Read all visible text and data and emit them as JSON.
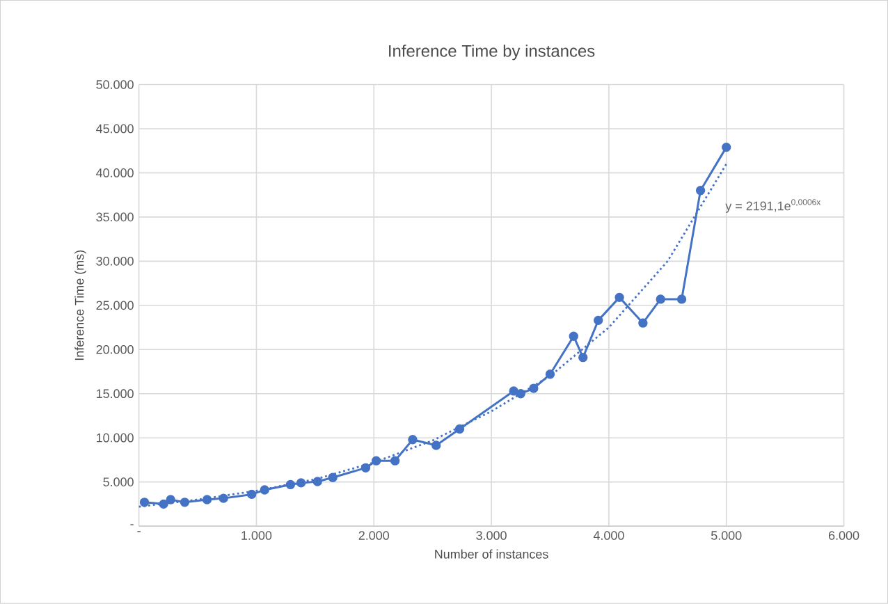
{
  "chart_data": {
    "type": "line",
    "title": "Inference Time by instances",
    "xlabel": "Number of instances",
    "ylabel": "Inference Time (ms)",
    "xlim": [
      0,
      6000
    ],
    "ylim": [
      0,
      50000
    ],
    "xticks": [
      {
        "value": 0,
        "label": "-"
      },
      {
        "value": 1000,
        "label": "1.000"
      },
      {
        "value": 2000,
        "label": "2.000"
      },
      {
        "value": 3000,
        "label": "3.000"
      },
      {
        "value": 4000,
        "label": "4.000"
      },
      {
        "value": 5000,
        "label": "5.000"
      },
      {
        "value": 6000,
        "label": "6.000"
      }
    ],
    "yticks": [
      {
        "value": 0,
        "label": "-"
      },
      {
        "value": 5000,
        "label": "5.000"
      },
      {
        "value": 10000,
        "label": "10.000"
      },
      {
        "value": 15000,
        "label": "15.000"
      },
      {
        "value": 20000,
        "label": "20.000"
      },
      {
        "value": 25000,
        "label": "25.000"
      },
      {
        "value": 30000,
        "label": "30.000"
      },
      {
        "value": 35000,
        "label": "35.000"
      },
      {
        "value": 40000,
        "label": "40.000"
      },
      {
        "value": 45000,
        "label": "45.000"
      },
      {
        "value": 50000,
        "label": "50.000"
      }
    ],
    "grid": true,
    "series": [
      {
        "color": "#4472c4",
        "marker": "circle",
        "line_style": "solid",
        "x": [
          47,
          210,
          270,
          390,
          580,
          720,
          960,
          1070,
          1290,
          1380,
          1520,
          1650,
          1930,
          2020,
          2180,
          2330,
          2530,
          2730,
          3190,
          3250,
          3360,
          3500,
          3700,
          3780,
          3910,
          4090,
          4290,
          4440,
          4620,
          4780,
          5000
        ],
        "values": [
          2700,
          2500,
          3000,
          2700,
          3000,
          3150,
          3600,
          4100,
          4700,
          4900,
          5050,
          5500,
          6600,
          7400,
          7400,
          9800,
          9150,
          11000,
          15300,
          15000,
          15600,
          17200,
          21500,
          19100,
          23300,
          25900,
          23000,
          25700,
          25700,
          38000,
          42900
        ]
      },
      {
        "color": "#4472c4",
        "marker": "none",
        "line_style": "dotted",
        "x": [
          0,
          500,
          1000,
          1500,
          2000,
          2500,
          3000,
          3500,
          4000,
          4500,
          5000
        ],
        "values": [
          2200,
          3000,
          4000,
          5300,
          7200,
          9700,
          13000,
          17000,
          22500,
          30000,
          41000
        ]
      }
    ],
    "annotations": [
      "y = 2191,1e$^{0,0006x}$"
    ]
  }
}
